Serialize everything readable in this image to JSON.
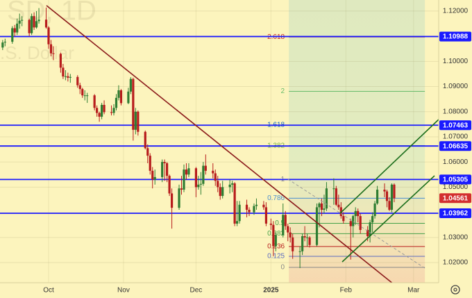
{
  "chart_data": {
    "type": "candlestick",
    "watermark": [
      "SD, 1D",
      ".S. Dollar"
    ],
    "xlim": [
      9.9,
      191.4
    ],
    "xticks": [
      {
        "value": 30,
        "label": "Oct"
      },
      {
        "value": 61,
        "label": "Nov"
      },
      {
        "value": 91,
        "label": "Dec"
      },
      {
        "value": 122,
        "label": "2025"
      },
      {
        "value": 153,
        "label": "Feb"
      },
      {
        "value": 181,
        "label": "Mar"
      }
    ],
    "ylim": [
      1.012,
      1.1244
    ],
    "yticks": [
      {
        "value": 1.12,
        "label": "1.12000"
      },
      {
        "value": 1.1,
        "label": "1.10000"
      },
      {
        "value": 1.09,
        "label": "1.09000"
      },
      {
        "value": 1.08,
        "label": "1.08000"
      },
      {
        "value": 1.07,
        "label": "1.07000"
      },
      {
        "value": 1.06,
        "label": "1.06000"
      },
      {
        "value": 1.05,
        "label": "1.05000"
      },
      {
        "value": 1.03,
        "label": "1.03000"
      },
      {
        "value": 1.02,
        "label": "1.02000"
      }
    ],
    "grid": true,
    "up_color": "#2e7d32",
    "down_color": "#b71c1c",
    "candles": {
      "x": [
        11,
        12,
        15,
        16,
        17,
        18,
        19,
        22,
        23,
        24,
        25,
        26,
        29,
        30,
        31,
        32,
        35,
        36,
        37,
        38,
        39,
        42,
        43,
        44,
        45,
        46,
        49,
        50,
        51,
        52,
        53,
        56,
        57,
        58,
        59,
        60,
        63,
        64,
        65,
        66,
        67,
        70,
        71,
        72,
        73,
        74,
        77,
        78,
        79,
        80,
        81,
        84,
        85,
        86,
        87,
        88,
        91,
        92,
        93,
        94,
        95,
        98,
        99,
        100,
        101,
        102,
        105,
        106,
        107,
        108,
        109,
        112,
        113,
        115,
        116,
        119,
        120,
        122,
        123,
        124,
        127,
        128,
        129,
        130,
        131,
        134,
        135,
        136,
        137,
        138,
        141,
        142,
        143,
        144,
        145,
        148,
        149,
        150,
        151,
        152,
        155,
        156,
        157,
        158,
        159,
        162,
        163,
        164,
        165,
        166,
        169,
        170,
        171,
        172,
        173
      ],
      "open": [
        1.1055,
        1.1075,
        1.1078,
        1.1132,
        1.1115,
        1.115,
        1.1162,
        1.1165,
        1.1112,
        1.118,
        1.1135,
        1.116,
        1.1166,
        1.1135,
        1.1068,
        1.1032,
        1.103,
        1.0975,
        1.094,
        1.0941,
        1.0935,
        1.0938,
        1.0905,
        1.089,
        1.0865,
        1.0865,
        1.0865,
        1.0815,
        1.0795,
        1.078,
        1.0827,
        1.0798,
        1.0795,
        1.0815,
        1.0855,
        1.0885,
        1.0834,
        1.088,
        1.093,
        1.0728,
        1.08,
        1.072,
        1.0655,
        1.0625,
        1.0565,
        1.053,
        1.054,
        1.06,
        1.0595,
        1.0545,
        1.0475,
        1.0418,
        1.0495,
        1.049,
        1.057,
        1.055,
        1.0575,
        1.05,
        1.051,
        1.0513,
        1.0585,
        1.0565,
        1.0555,
        1.0525,
        1.05,
        1.0465,
        1.05,
        1.051,
        1.0515,
        1.0355,
        1.0365,
        1.043,
        1.041,
        1.04,
        1.0425,
        1.043,
        1.042,
        1.0355,
        1.035,
        1.0265,
        1.031,
        1.039,
        1.0345,
        1.032,
        1.03,
        1.0245,
        1.0245,
        1.0305,
        1.03,
        1.03,
        1.027,
        1.042,
        1.0435,
        1.041,
        1.0415,
        1.0495,
        1.0495,
        1.043,
        1.042,
        1.0385,
        1.0365,
        1.0345,
        1.0385,
        1.0405,
        1.0385,
        1.033,
        1.0305,
        1.036,
        1.0385,
        1.0435,
        1.049,
        1.0483,
        1.0445,
        1.041,
        1.051
      ],
      "high": [
        1.1085,
        1.109,
        1.114,
        1.1145,
        1.117,
        1.119,
        1.118,
        1.117,
        1.119,
        1.1195,
        1.12,
        1.1212,
        1.1214,
        1.114,
        1.1085,
        1.106,
        1.1035,
        1.099,
        1.0965,
        1.0955,
        1.095,
        1.0945,
        1.0915,
        1.0895,
        1.0885,
        1.0875,
        1.087,
        1.0825,
        1.08,
        1.0835,
        1.0845,
        1.0825,
        1.083,
        1.087,
        1.0905,
        1.089,
        1.0895,
        1.0937,
        1.0935,
        1.0815,
        1.0805,
        1.0725,
        1.067,
        1.0635,
        1.058,
        1.057,
        1.061,
        1.061,
        1.06,
        1.055,
        1.0495,
        1.051,
        1.0545,
        1.059,
        1.0595,
        1.0595,
        1.058,
        1.0545,
        1.056,
        1.06,
        1.063,
        1.0595,
        1.057,
        1.0545,
        1.0515,
        1.0525,
        1.053,
        1.0525,
        1.052,
        1.0445,
        1.0445,
        1.045,
        1.042,
        1.0435,
        1.0455,
        1.0445,
        1.044,
        1.0375,
        1.0365,
        1.032,
        1.0435,
        1.0405,
        1.0355,
        1.034,
        1.0315,
        1.0265,
        1.0315,
        1.0345,
        1.0315,
        1.0305,
        1.0435,
        1.044,
        1.0455,
        1.047,
        1.052,
        1.0535,
        1.0505,
        1.047,
        1.044,
        1.04,
        1.0375,
        1.039,
        1.042,
        1.0415,
        1.0395,
        1.0345,
        1.037,
        1.04,
        1.0445,
        1.0505,
        1.0515,
        1.049,
        1.046,
        1.0515,
        1.0515
      ],
      "low": [
        1.1045,
        1.106,
        1.107,
        1.11,
        1.1105,
        1.113,
        1.114,
        1.11,
        1.1105,
        1.1125,
        1.113,
        1.115,
        1.113,
        1.105,
        1.102,
        1.1005,
        1.0955,
        1.093,
        1.0925,
        1.092,
        1.0915,
        1.0895,
        1.087,
        1.0855,
        1.0845,
        1.0835,
        1.0805,
        1.078,
        1.076,
        1.077,
        1.079,
        1.0785,
        1.0785,
        1.0805,
        1.0845,
        1.0825,
        1.083,
        1.087,
        1.0685,
        1.071,
        1.0705,
        1.065,
        1.0595,
        1.055,
        1.0495,
        1.051,
        1.052,
        1.0525,
        1.052,
        1.0465,
        1.0335,
        1.041,
        1.047,
        1.048,
        1.053,
        1.054,
        1.046,
        1.049,
        1.047,
        1.0505,
        1.055,
        1.0535,
        1.0505,
        1.048,
        1.045,
        1.0455,
        1.0475,
        1.048,
        1.0345,
        1.0345,
        1.0355,
        1.038,
        1.0385,
        1.039,
        1.041,
        1.041,
        1.0345,
        1.033,
        1.0225,
        1.0245,
        1.03,
        1.033,
        1.0285,
        1.028,
        1.0215,
        1.0178,
        1.023,
        1.0285,
        1.0265,
        1.026,
        1.0265,
        1.034,
        1.0385,
        1.0395,
        1.0405,
        1.043,
        1.0425,
        1.041,
        1.0375,
        1.0355,
        1.0212,
        1.03,
        1.035,
        1.036,
        1.0315,
        1.0285,
        1.028,
        1.032,
        1.0375,
        1.043,
        1.046,
        1.042,
        1.0405,
        1.04,
        1.044
      ],
      "close": [
        1.1075,
        1.1078,
        1.1132,
        1.1115,
        1.115,
        1.1162,
        1.1165,
        1.1112,
        1.118,
        1.1135,
        1.116,
        1.1166,
        1.1135,
        1.1068,
        1.1032,
        1.103,
        1.0975,
        1.094,
        1.0941,
        1.0935,
        1.0938,
        1.0905,
        1.089,
        1.0865,
        1.0865,
        1.0865,
        1.0815,
        1.0795,
        1.078,
        1.0827,
        1.0798,
        1.0795,
        1.0815,
        1.0855,
        1.0885,
        1.0834,
        1.088,
        1.093,
        1.0728,
        1.08,
        1.072,
        1.0655,
        1.0625,
        1.0565,
        1.053,
        1.054,
        1.06,
        1.0595,
        1.0545,
        1.0475,
        1.0418,
        1.0495,
        1.049,
        1.057,
        1.055,
        1.0575,
        1.05,
        1.051,
        1.0513,
        1.0585,
        1.0565,
        1.0555,
        1.0525,
        1.05,
        1.0465,
        1.05,
        1.051,
        1.0515,
        1.0355,
        1.0365,
        1.043,
        1.041,
        1.04,
        1.0425,
        1.043,
        1.042,
        1.0355,
        1.035,
        1.0265,
        1.031,
        1.039,
        1.0345,
        1.032,
        1.03,
        1.0245,
        1.0245,
        1.0305,
        1.03,
        1.03,
        1.027,
        1.042,
        1.0435,
        1.041,
        1.0415,
        1.0495,
        1.0495,
        1.043,
        1.042,
        1.0385,
        1.0365,
        1.0345,
        1.0385,
        1.0405,
        1.0385,
        1.033,
        1.0305,
        1.036,
        1.0385,
        1.0435,
        1.049,
        1.0483,
        1.0445,
        1.041,
        1.051,
        1.0456
      ]
    },
    "levels": [
      {
        "value": 1.10988,
        "color": "#1a1aff"
      },
      {
        "value": 1.07463,
        "color": "#1a1aff"
      },
      {
        "value": 1.06635,
        "color": "#1a1aff"
      },
      {
        "value": 1.05305,
        "color": "#1a1aff"
      },
      {
        "value": 1.03962,
        "color": "#1a1aff"
      }
    ],
    "last_price": {
      "value": 1.04561,
      "color": "#d32f2f"
    },
    "fib": {
      "x": [
        129.4,
        185.7
      ],
      "levels": [
        {
          "ratio": 2.618,
          "price": 1.1097,
          "color": "#c62828"
        },
        {
          "ratio": 2,
          "price": 1.0881,
          "color": "#66bb6a"
        },
        {
          "ratio": 1.618,
          "price": 1.0747,
          "color": "#1565c0"
        },
        {
          "ratio": 1.382,
          "price": 1.0665,
          "color": "#7cb342"
        },
        {
          "ratio": 1,
          "price": 1.0531,
          "color": "#888888"
        },
        {
          "ratio": 0.786,
          "price": 1.0456,
          "color": "#4a8fd0"
        },
        {
          "ratio": 0.5,
          "price": 1.0356,
          "color": "#43a047"
        },
        {
          "ratio": 0.382,
          "price": 1.0315,
          "color": "#43a047"
        },
        {
          "ratio": 0.236,
          "price": 1.0264,
          "color": "#b71c1c"
        },
        {
          "ratio": 0.125,
          "price": 1.0225,
          "color": "#5c6bc0"
        },
        {
          "ratio": 0,
          "price": 1.0181,
          "color": "#888888"
        }
      ]
    }
  }
}
